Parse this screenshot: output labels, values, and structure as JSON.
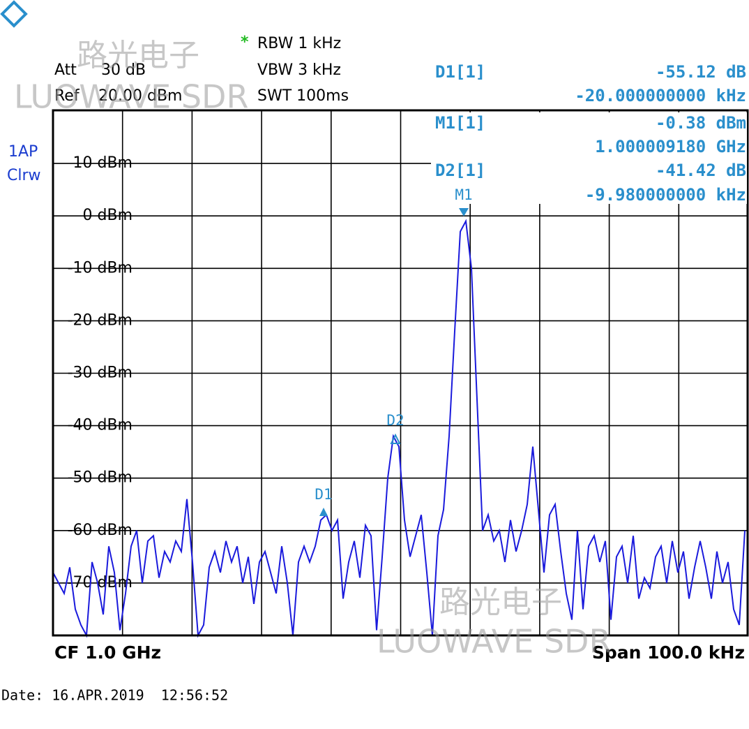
{
  "settings": {
    "att_label": "Att",
    "att": "30 dB",
    "ref_label": "Ref",
    "ref": "20.00 dBm",
    "star": "*",
    "rbw": "RBW 1 kHz",
    "vbw": "VBW 3 kHz",
    "swt": "SWT 100ms"
  },
  "trace_label": [
    "1AP",
    "Clrw"
  ],
  "marker_table": [
    {
      "name": "D1[1]",
      "level": "-55.12 dB",
      "freq": "-20.000000000 kHz"
    },
    {
      "name": "M1[1]",
      "level": "-0.38 dBm",
      "freq": "1.000009180 GHz"
    },
    {
      "name": "D2[1]",
      "level": "-41.42 dB",
      "freq": "-9.980000000 kHz"
    }
  ],
  "markers": [
    "D1",
    "D2",
    "M1"
  ],
  "footer": {
    "cf": "CF 1.0 GHz",
    "span": "Span 100.0 kHz",
    "date": "Date: 16.APR.2019  12:56:52"
  },
  "watermark": {
    "cn": "路光电子",
    "en": "LUOWAVE SDR"
  },
  "chart_data": {
    "type": "line",
    "color": "#1a1adc",
    "grid": true,
    "ylim": [
      -80,
      20
    ],
    "yticks": [
      {
        "value": 10,
        "label": "10 dBm"
      },
      {
        "value": 0,
        "label": "0 dBm"
      },
      {
        "value": -10,
        "label": "-10 dBm"
      },
      {
        "value": -20,
        "label": "-20 dBm"
      },
      {
        "value": -30,
        "label": "-30 dBm"
      },
      {
        "value": -40,
        "label": "-40 dBm"
      },
      {
        "value": -50,
        "label": "-50 dBm"
      },
      {
        "value": -60,
        "label": "-60 dBm"
      },
      {
        "value": -70,
        "label": "-70 dBm"
      }
    ],
    "values": [
      -68,
      -70,
      -72,
      -67,
      -75,
      -78,
      -80,
      -66,
      -70,
      -76,
      -63,
      -68,
      -79,
      -72,
      -63,
      -60,
      -70,
      -62,
      -61,
      -69,
      -64,
      -66,
      -62,
      -64,
      -54,
      -66,
      -80,
      -78,
      -67,
      -64,
      -68,
      -62,
      -66,
      -63,
      -70,
      -65,
      -74,
      -66,
      -64,
      -68,
      -72,
      -63,
      -70,
      -80,
      -66,
      -63,
      -66,
      -63,
      -58,
      -57,
      -60,
      -58,
      -73,
      -66,
      -62,
      -69,
      -59,
      -61,
      -79,
      -65,
      -50,
      -42,
      -44,
      -58,
      -65,
      -61,
      -57,
      -68,
      -80,
      -61,
      -56,
      -42,
      -22,
      -3,
      -1,
      -10,
      -35,
      -60,
      -57,
      -62,
      -60,
      -66,
      -58,
      -64,
      -60,
      -55,
      -44,
      -56,
      -68,
      -57,
      -55,
      -64,
      -72,
      -77,
      -60,
      -75,
      -63,
      -61,
      -66,
      -62,
      -77,
      -65,
      -63,
      -70,
      -61,
      -73,
      -69,
      -71,
      -65,
      -63,
      -70,
      -62,
      -68,
      -64,
      -73,
      -67,
      -62,
      -67,
      -73,
      -64,
      -70,
      -66,
      -75,
      -78,
      -60
    ]
  }
}
